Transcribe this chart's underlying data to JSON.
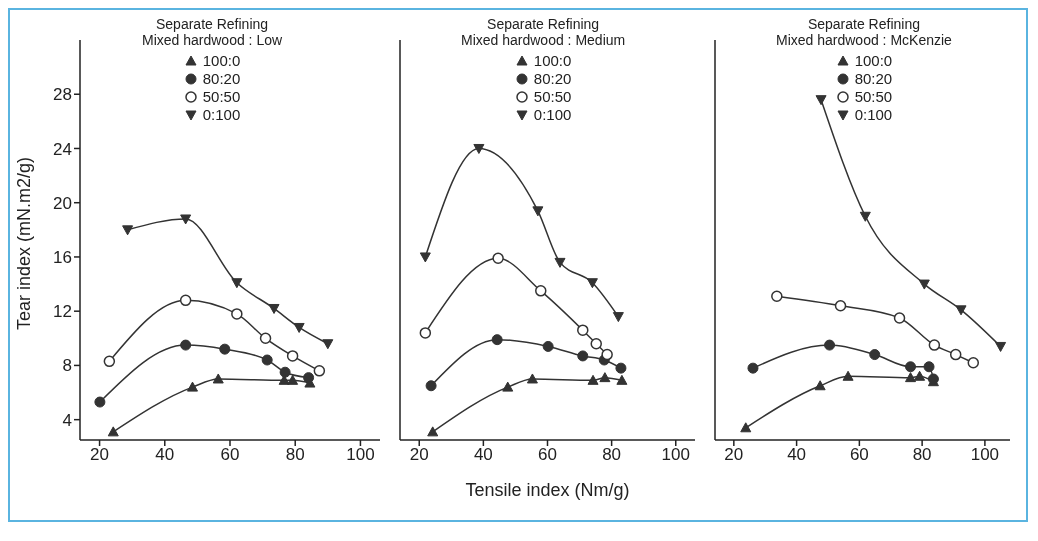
{
  "chart_data": [
    {
      "type": "line",
      "title": "Separate Refining",
      "subtitle": "Mixed hardwood : Low",
      "ylabel": "Tear index (mN.m2/g)",
      "xlim": [
        14,
        106
      ],
      "xticks": [
        20,
        40,
        60,
        80,
        100
      ],
      "ylim": [
        2.5,
        32
      ],
      "yticks": [
        4,
        8,
        12,
        16,
        20,
        24,
        28
      ],
      "legend": "top",
      "grid": false,
      "series": [
        {
          "name": "100:0",
          "color": "#333333",
          "marker": "triangle",
          "x": [
            24.2,
            48.5,
            56.4,
            76.6,
            79.2,
            84.5
          ],
          "values": [
            3.1,
            6.4,
            7.0,
            6.9,
            6.9,
            6.7
          ]
        },
        {
          "name": "80:20",
          "color": "#333333",
          "marker": "circle",
          "x": [
            20.1,
            46.4,
            58.4,
            71.4,
            76.9,
            84.1
          ],
          "values": [
            5.3,
            9.5,
            9.2,
            8.4,
            7.5,
            7.1
          ]
        },
        {
          "name": "50:50",
          "color": "#333333",
          "marker": "circle-open",
          "x": [
            23.0,
            46.4,
            62.1,
            70.9,
            79.2,
            87.4
          ],
          "values": [
            8.3,
            12.8,
            11.8,
            10.0,
            8.7,
            7.6
          ]
        },
        {
          "name": "0:100",
          "color": "#333333",
          "marker": "triangle-down",
          "x": [
            28.6,
            46.4,
            62.1,
            73.5,
            81.2,
            90.0
          ],
          "values": [
            18.0,
            18.8,
            14.1,
            12.2,
            10.8,
            9.6
          ]
        }
      ]
    },
    {
      "type": "line",
      "title": "Separate Refining",
      "subtitle": "Mixed hardwood : Medium",
      "xlabel": "Tensile index (Nm/g)",
      "xlim": [
        14,
        106
      ],
      "xticks": [
        20,
        40,
        60,
        80,
        100
      ],
      "ylim": [
        2.5,
        32
      ],
      "yticks": [
        4,
        8,
        12,
        16,
        20,
        24,
        28
      ],
      "tick_labels": "x",
      "legend": "top",
      "grid": false,
      "series": [
        {
          "name": "100:0",
          "color": "#333333",
          "marker": "triangle",
          "x": [
            24.2,
            47.6,
            55.3,
            74.2,
            77.9,
            83.2
          ],
          "values": [
            3.1,
            6.4,
            7.0,
            6.9,
            7.1,
            6.9
          ]
        },
        {
          "name": "80:20",
          "color": "#333333",
          "marker": "circle",
          "x": [
            23.7,
            44.3,
            60.2,
            71.0,
            77.7,
            82.9
          ],
          "values": [
            6.5,
            9.9,
            9.4,
            8.7,
            8.4,
            7.8
          ]
        },
        {
          "name": "50:50",
          "color": "#333333",
          "marker": "circle-open",
          "x": [
            21.9,
            44.6,
            57.9,
            71.0,
            75.2,
            78.6
          ],
          "values": [
            10.4,
            15.9,
            13.5,
            10.6,
            9.6,
            8.8
          ]
        },
        {
          "name": "0:100",
          "color": "#333333",
          "marker": "triangle-down",
          "x": [
            21.9,
            38.6,
            57.0,
            63.9,
            74.0,
            82.1
          ],
          "values": [
            16.0,
            24.0,
            19.4,
            15.6,
            14.1,
            11.6
          ]
        }
      ]
    },
    {
      "type": "line",
      "title": "Separate Refining",
      "subtitle": "Mixed hardwood : McKenzie",
      "xlim": [
        14,
        108
      ],
      "xticks": [
        20,
        40,
        60,
        80,
        100
      ],
      "ylim": [
        2.5,
        32
      ],
      "yticks": [
        4,
        8,
        12,
        16,
        20,
        24,
        28
      ],
      "tick_labels": "x",
      "legend": "top",
      "grid": false,
      "series": [
        {
          "name": "100:0",
          "color": "#333333",
          "marker": "triangle",
          "x": [
            23.8,
            47.5,
            56.4,
            76.3,
            79.2,
            83.6
          ],
          "values": [
            3.4,
            6.5,
            7.2,
            7.1,
            7.2,
            6.8
          ]
        },
        {
          "name": "80:20",
          "color": "#333333",
          "marker": "circle",
          "x": [
            26.1,
            50.5,
            64.9,
            76.3,
            82.2,
            83.6
          ],
          "values": [
            7.8,
            9.5,
            8.8,
            7.9,
            7.9,
            7.0
          ]
        },
        {
          "name": "50:50",
          "color": "#333333",
          "marker": "circle-open",
          "x": [
            33.7,
            54.0,
            72.8,
            83.9,
            90.7,
            96.3
          ],
          "values": [
            13.1,
            12.4,
            11.5,
            9.5,
            8.8,
            8.2
          ]
        },
        {
          "name": "0:100",
          "color": "#333333",
          "marker": "triangle-down",
          "x": [
            47.8,
            61.9,
            80.7,
            92.4,
            105.0
          ],
          "values": [
            27.6,
            19.0,
            14.0,
            12.1,
            9.4
          ]
        }
      ]
    }
  ]
}
